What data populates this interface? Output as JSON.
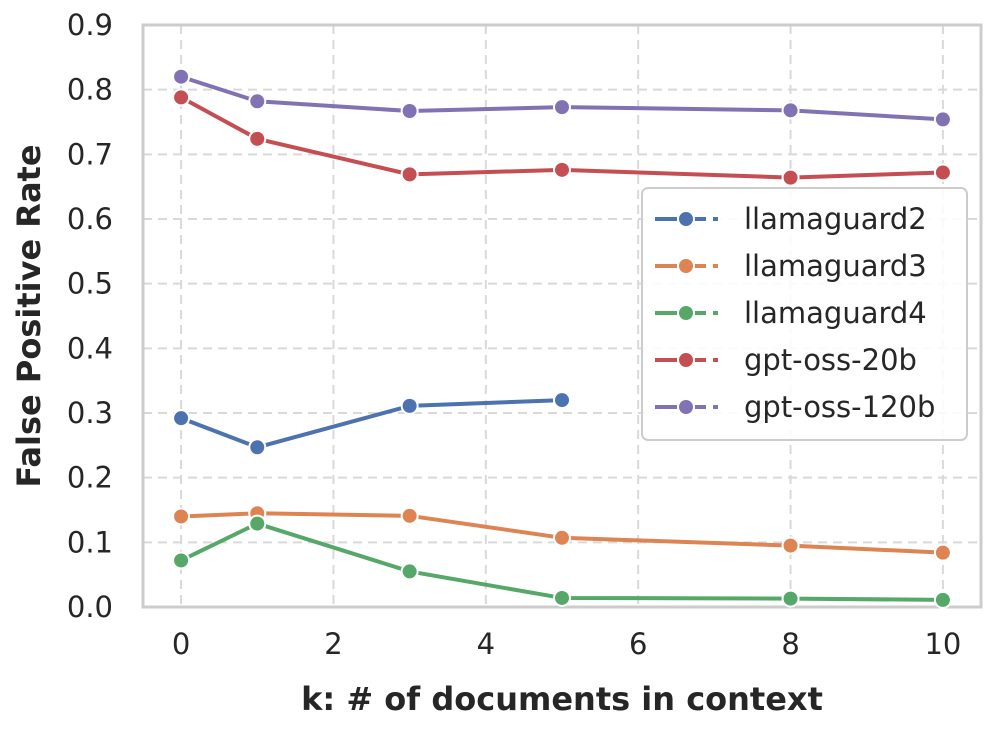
{
  "chart_data": {
    "type": "line",
    "title": "",
    "xlabel": "k: # of documents in context",
    "ylabel": "False Positive Rate",
    "xlim": [
      -0.5,
      10.5
    ],
    "ylim": [
      0.0,
      0.9
    ],
    "xticks": [
      0,
      2,
      4,
      6,
      8,
      10
    ],
    "xtick_labels": [
      "0",
      "2",
      "4",
      "6",
      "8",
      "10"
    ],
    "yticks": [
      0.0,
      0.1,
      0.2,
      0.3,
      0.4,
      0.5,
      0.6,
      0.7,
      0.8,
      0.9
    ],
    "ytick_labels": [
      "0.0",
      "0.1",
      "0.2",
      "0.3",
      "0.4",
      "0.5",
      "0.6",
      "0.7",
      "0.8",
      "0.9"
    ],
    "grid": true,
    "legend_position": "center-right",
    "series": [
      {
        "name": "llamaguard2",
        "color": "#4c72b0",
        "x": [
          0,
          1,
          3,
          5
        ],
        "values": [
          0.292,
          0.247,
          0.311,
          0.32
        ]
      },
      {
        "name": "llamaguard3",
        "color": "#dd8452",
        "x": [
          0,
          1,
          3,
          5,
          8,
          10
        ],
        "values": [
          0.14,
          0.145,
          0.141,
          0.107,
          0.095,
          0.084
        ]
      },
      {
        "name": "llamaguard4",
        "color": "#55a868",
        "x": [
          0,
          1,
          3,
          5,
          8,
          10
        ],
        "values": [
          0.072,
          0.129,
          0.055,
          0.014,
          0.013,
          0.011
        ]
      },
      {
        "name": "gpt-oss-20b",
        "color": "#c44e52",
        "x": [
          0,
          1,
          3,
          5,
          8,
          10
        ],
        "values": [
          0.788,
          0.724,
          0.669,
          0.676,
          0.664,
          0.672
        ]
      },
      {
        "name": "gpt-oss-120b",
        "color": "#8172b3",
        "x": [
          0,
          1,
          3,
          5,
          8,
          10
        ],
        "values": [
          0.82,
          0.782,
          0.767,
          0.773,
          0.768,
          0.754
        ]
      }
    ]
  }
}
